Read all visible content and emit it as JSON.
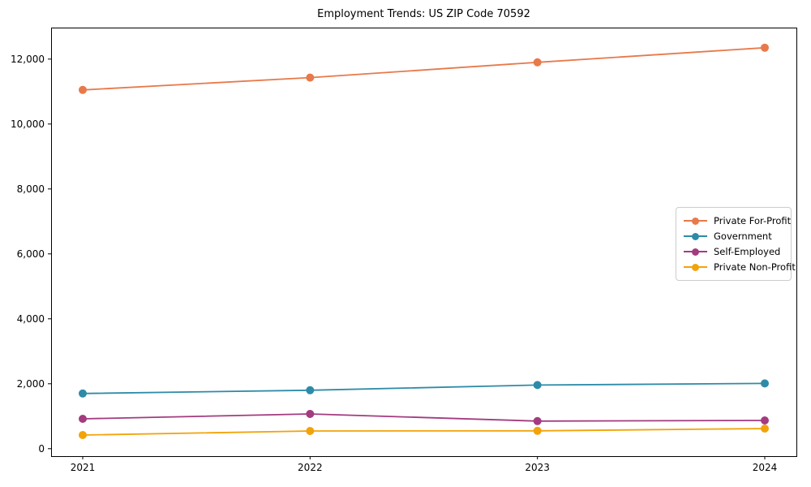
{
  "chart_data": {
    "type": "line",
    "title": "Employment Trends: US ZIP Code 70592",
    "x": [
      "2021",
      "2022",
      "2023",
      "2024"
    ],
    "xtick_labels": [
      "2021",
      "2022",
      "2023",
      "2024"
    ],
    "series": [
      {
        "name": "Private For-Profit",
        "color": "#E8794A",
        "values": [
          11050,
          11430,
          11900,
          12350
        ]
      },
      {
        "name": "Government",
        "color": "#2E8BA8",
        "values": [
          1700,
          1800,
          1960,
          2010
        ]
      },
      {
        "name": "Self-Employed",
        "color": "#A33B80",
        "values": [
          920,
          1070,
          850,
          870
        ]
      },
      {
        "name": "Private Non-Profit",
        "color": "#F2A30A",
        "values": [
          420,
          545,
          550,
          620
        ]
      }
    ],
    "xlabel": "",
    "ylabel": "",
    "ylim": [
      -230,
      12970
    ],
    "yticks": [
      0,
      2000,
      4000,
      6000,
      8000,
      10000,
      12000
    ],
    "ytick_labels": [
      "0",
      "2,000",
      "4,000",
      "6,000",
      "8,000",
      "10,000",
      "12,000"
    ],
    "grid": false,
    "legend_position": "center-right",
    "marker": "circle",
    "axis_color": "#000000",
    "background_color": "#ffffff"
  }
}
